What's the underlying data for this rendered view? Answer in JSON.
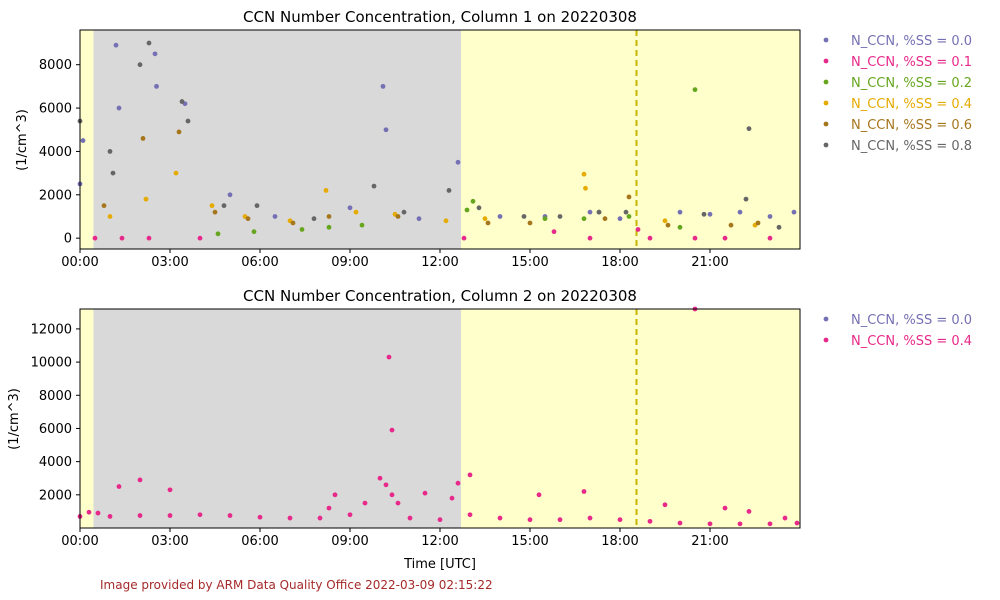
{
  "colors": {
    "night_shade": "#d9d9d9",
    "day_shade": "#ffffcc",
    "marker_line": "#c8b400",
    "credit": "#a52a2a"
  },
  "credit": "Image provided by ARM Data Quality Office 2022-03-09 02:15:22",
  "chart_data": [
    {
      "type": "scatter",
      "title": "CCN Number Concentration, Column 1 on 20220308",
      "xlabel": "",
      "ylabel": "(1/cm^3)",
      "xlim_hours": [
        0,
        24
      ],
      "ylim": [
        -500,
        9600
      ],
      "x_ticks": [
        "00:00",
        "03:00",
        "06:00",
        "09:00",
        "12:00",
        "15:00",
        "18:00",
        "21:00"
      ],
      "y_ticks": [
        0,
        2000,
        4000,
        6000,
        8000
      ],
      "shading": [
        {
          "kind": "day",
          "from_hour": 0.0,
          "to_hour": 0.45
        },
        {
          "kind": "night",
          "from_hour": 0.45,
          "to_hour": 12.7
        },
        {
          "kind": "day",
          "from_hour": 12.7,
          "to_hour": 24.0
        }
      ],
      "vline_hour": 18.55,
      "legend_position": "outside-right",
      "series": [
        {
          "name": "N_CCN, %SS = 0.0",
          "color": "#7570b3",
          "points": [
            [
              0.0,
              2500
            ],
            [
              0.1,
              4500
            ],
            [
              1.2,
              8900
            ],
            [
              1.3,
              6000
            ],
            [
              2.5,
              8500
            ],
            [
              2.55,
              7000
            ],
            [
              3.5,
              6200
            ],
            [
              5.0,
              2000
            ],
            [
              6.5,
              1000
            ],
            [
              9.0,
              1400
            ],
            [
              10.1,
              7000
            ],
            [
              10.2,
              5000
            ],
            [
              11.3,
              900
            ],
            [
              12.6,
              3500
            ],
            [
              14.0,
              1000
            ],
            [
              15.5,
              1000
            ],
            [
              17.0,
              1200
            ],
            [
              18.0,
              900
            ],
            [
              20.0,
              1200
            ],
            [
              21.0,
              1100
            ],
            [
              22.0,
              1200
            ],
            [
              23.0,
              1000
            ],
            [
              23.8,
              1200
            ]
          ]
        },
        {
          "name": "N_CCN, %SS = 0.1",
          "color": "#e7298a",
          "points": [
            [
              0.5,
              0
            ],
            [
              1.4,
              0
            ],
            [
              2.3,
              0
            ],
            [
              4.0,
              0
            ],
            [
              12.8,
              0
            ],
            [
              15.8,
              300
            ],
            [
              17.0,
              0
            ],
            [
              18.6,
              400
            ],
            [
              19.0,
              0
            ],
            [
              20.5,
              0
            ],
            [
              21.5,
              0
            ],
            [
              23.0,
              0
            ]
          ]
        },
        {
          "name": "N_CCN, %SS = 0.2",
          "color": "#66a61e",
          "points": [
            [
              4.6,
              200
            ],
            [
              5.8,
              300
            ],
            [
              7.4,
              400
            ],
            [
              8.3,
              500
            ],
            [
              9.4,
              600
            ],
            [
              12.9,
              1300
            ],
            [
              13.1,
              1700
            ],
            [
              15.5,
              900
            ],
            [
              16.8,
              900
            ],
            [
              17.3,
              1200
            ],
            [
              18.3,
              1000
            ],
            [
              20.5,
              6850
            ],
            [
              20.0,
              500
            ]
          ]
        },
        {
          "name": "N_CCN, %SS = 0.4",
          "color": "#e6ab02",
          "points": [
            [
              1.0,
              1000
            ],
            [
              2.2,
              1800
            ],
            [
              3.2,
              3000
            ],
            [
              4.4,
              1500
            ],
            [
              5.5,
              1000
            ],
            [
              7.0,
              800
            ],
            [
              8.2,
              2200
            ],
            [
              9.2,
              1200
            ],
            [
              10.5,
              1100
            ],
            [
              12.2,
              800
            ],
            [
              13.5,
              900
            ],
            [
              16.8,
              2950
            ],
            [
              16.85,
              2300
            ],
            [
              19.5,
              800
            ],
            [
              22.5,
              600
            ]
          ]
        },
        {
          "name": "N_CCN, %SS = 0.6",
          "color": "#a6761d",
          "points": [
            [
              0.8,
              1500
            ],
            [
              2.1,
              4600
            ],
            [
              3.3,
              4900
            ],
            [
              4.5,
              1200
            ],
            [
              5.6,
              900
            ],
            [
              7.1,
              700
            ],
            [
              8.3,
              1000
            ],
            [
              10.6,
              1000
            ],
            [
              13.6,
              700
            ],
            [
              15.0,
              700
            ],
            [
              17.5,
              900
            ],
            [
              18.3,
              1900
            ],
            [
              19.6,
              600
            ],
            [
              21.7,
              600
            ],
            [
              22.6,
              700
            ]
          ]
        },
        {
          "name": "N_CCN, %SS = 0.8",
          "color": "#666666",
          "points": [
            [
              0.0,
              5400
            ],
            [
              1.0,
              4000
            ],
            [
              1.1,
              3000
            ],
            [
              2.0,
              8000
            ],
            [
              2.3,
              9000
            ],
            [
              3.4,
              6300
            ],
            [
              3.6,
              5400
            ],
            [
              4.8,
              1500
            ],
            [
              5.9,
              1500
            ],
            [
              7.8,
              900
            ],
            [
              9.8,
              2400
            ],
            [
              10.8,
              1200
            ],
            [
              12.3,
              2200
            ],
            [
              13.3,
              1400
            ],
            [
              14.8,
              1000
            ],
            [
              16.0,
              1000
            ],
            [
              17.3,
              1200
            ],
            [
              18.2,
              1200
            ],
            [
              20.8,
              1100
            ],
            [
              22.2,
              1800
            ],
            [
              22.3,
              5050
            ],
            [
              23.3,
              500
            ]
          ]
        }
      ]
    },
    {
      "type": "scatter",
      "title": "CCN Number Concentration, Column 2 on 20220308",
      "xlabel": "Time [UTC]",
      "ylabel": "(1/cm^3)",
      "xlim_hours": [
        0,
        24
      ],
      "ylim": [
        0,
        13200
      ],
      "x_ticks": [
        "00:00",
        "03:00",
        "06:00",
        "09:00",
        "12:00",
        "15:00",
        "18:00",
        "21:00"
      ],
      "y_ticks": [
        2000,
        4000,
        6000,
        8000,
        10000,
        12000
      ],
      "shading": [
        {
          "kind": "day",
          "from_hour": 0.0,
          "to_hour": 0.45
        },
        {
          "kind": "night",
          "from_hour": 0.45,
          "to_hour": 12.7
        },
        {
          "kind": "day",
          "from_hour": 12.7,
          "to_hour": 24.0
        }
      ],
      "vline_hour": 18.55,
      "legend_position": "outside-right",
      "series": [
        {
          "name": "N_CCN, %SS = 0.0",
          "color": "#7570b3",
          "points": []
        },
        {
          "name": "N_CCN, %SS = 0.4",
          "color": "#e7298a",
          "points": [
            [
              0.0,
              700
            ],
            [
              0.3,
              950
            ],
            [
              0.6,
              900
            ],
            [
              1.0,
              700
            ],
            [
              1.3,
              2500
            ],
            [
              2.0,
              750
            ],
            [
              2.0,
              2900
            ],
            [
              3.0,
              750
            ],
            [
              3.0,
              2300
            ],
            [
              4.0,
              800
            ],
            [
              5.0,
              750
            ],
            [
              6.0,
              650
            ],
            [
              7.0,
              600
            ],
            [
              8.0,
              600
            ],
            [
              8.3,
              1200
            ],
            [
              8.5,
              2000
            ],
            [
              9.0,
              800
            ],
            [
              9.5,
              1500
            ],
            [
              10.0,
              3000
            ],
            [
              10.2,
              2600
            ],
            [
              10.4,
              2000
            ],
            [
              10.6,
              1500
            ],
            [
              10.4,
              5900
            ],
            [
              10.3,
              10300
            ],
            [
              11.0,
              600
            ],
            [
              11.5,
              2100
            ],
            [
              12.0,
              500
            ],
            [
              12.4,
              1800
            ],
            [
              12.6,
              2700
            ],
            [
              13.0,
              800
            ],
            [
              13.0,
              3200
            ],
            [
              14.0,
              600
            ],
            [
              15.0,
              500
            ],
            [
              15.3,
              2000
            ],
            [
              16.0,
              500
            ],
            [
              16.8,
              2200
            ],
            [
              17.0,
              600
            ],
            [
              18.0,
              500
            ],
            [
              19.0,
              400
            ],
            [
              19.5,
              1400
            ],
            [
              20.0,
              300
            ],
            [
              20.5,
              13200
            ],
            [
              21.0,
              250
            ],
            [
              21.5,
              1200
            ],
            [
              22.0,
              250
            ],
            [
              22.3,
              1000
            ],
            [
              23.0,
              250
            ],
            [
              23.5,
              600
            ],
            [
              23.9,
              300
            ]
          ]
        }
      ]
    }
  ]
}
